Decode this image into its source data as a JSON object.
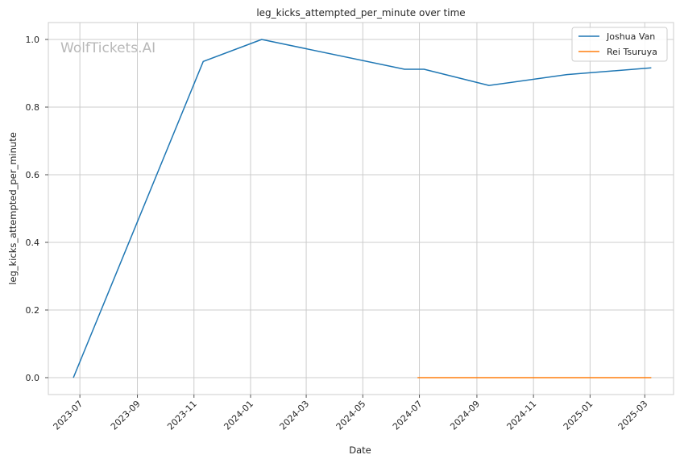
{
  "watermark": "WolfTickets.AI",
  "chart_data": {
    "type": "line",
    "title": "leg_kicks_attempted_per_minute over time",
    "xlabel": "Date",
    "ylabel": "leg_kicks_attempted_per_minute",
    "xlim": [
      "2023-05-28",
      "2025-04-01"
    ],
    "ylim": [
      -0.05,
      1.05
    ],
    "x_ticks": [
      "2023-07-01",
      "2023-09-01",
      "2023-11-01",
      "2024-01-01",
      "2024-03-01",
      "2024-05-01",
      "2024-07-01",
      "2024-09-01",
      "2024-11-01",
      "2025-01-01",
      "2025-03-01"
    ],
    "x_tick_labels": [
      "2023-07",
      "2023-09",
      "2023-11",
      "2024-01",
      "2024-03",
      "2024-05",
      "2024-07",
      "2024-09",
      "2024-11",
      "2025-01",
      "2025-03"
    ],
    "y_ticks": [
      0.0,
      0.2,
      0.4,
      0.6,
      0.8,
      1.0
    ],
    "y_tick_labels": [
      "0.0",
      "0.2",
      "0.4",
      "0.6",
      "0.8",
      "1.0"
    ],
    "grid": true,
    "legend_position": "top-right",
    "series": [
      {
        "name": "Joshua Van",
        "color": "#1f77b4",
        "points": [
          {
            "x": "2023-06-24",
            "y": 0.0
          },
          {
            "x": "2023-11-11",
            "y": 0.935
          },
          {
            "x": "2024-01-13",
            "y": 1.0
          },
          {
            "x": "2024-06-15",
            "y": 0.912
          },
          {
            "x": "2024-07-06",
            "y": 0.912
          },
          {
            "x": "2024-09-14",
            "y": 0.864
          },
          {
            "x": "2024-12-07",
            "y": 0.896
          },
          {
            "x": "2025-03-08",
            "y": 0.916
          }
        ]
      },
      {
        "name": "Rei Tsuruya",
        "color": "#ff7f0e",
        "points": [
          {
            "x": "2024-06-29",
            "y": 0.0
          },
          {
            "x": "2025-03-08",
            "y": 0.0
          }
        ]
      }
    ]
  }
}
